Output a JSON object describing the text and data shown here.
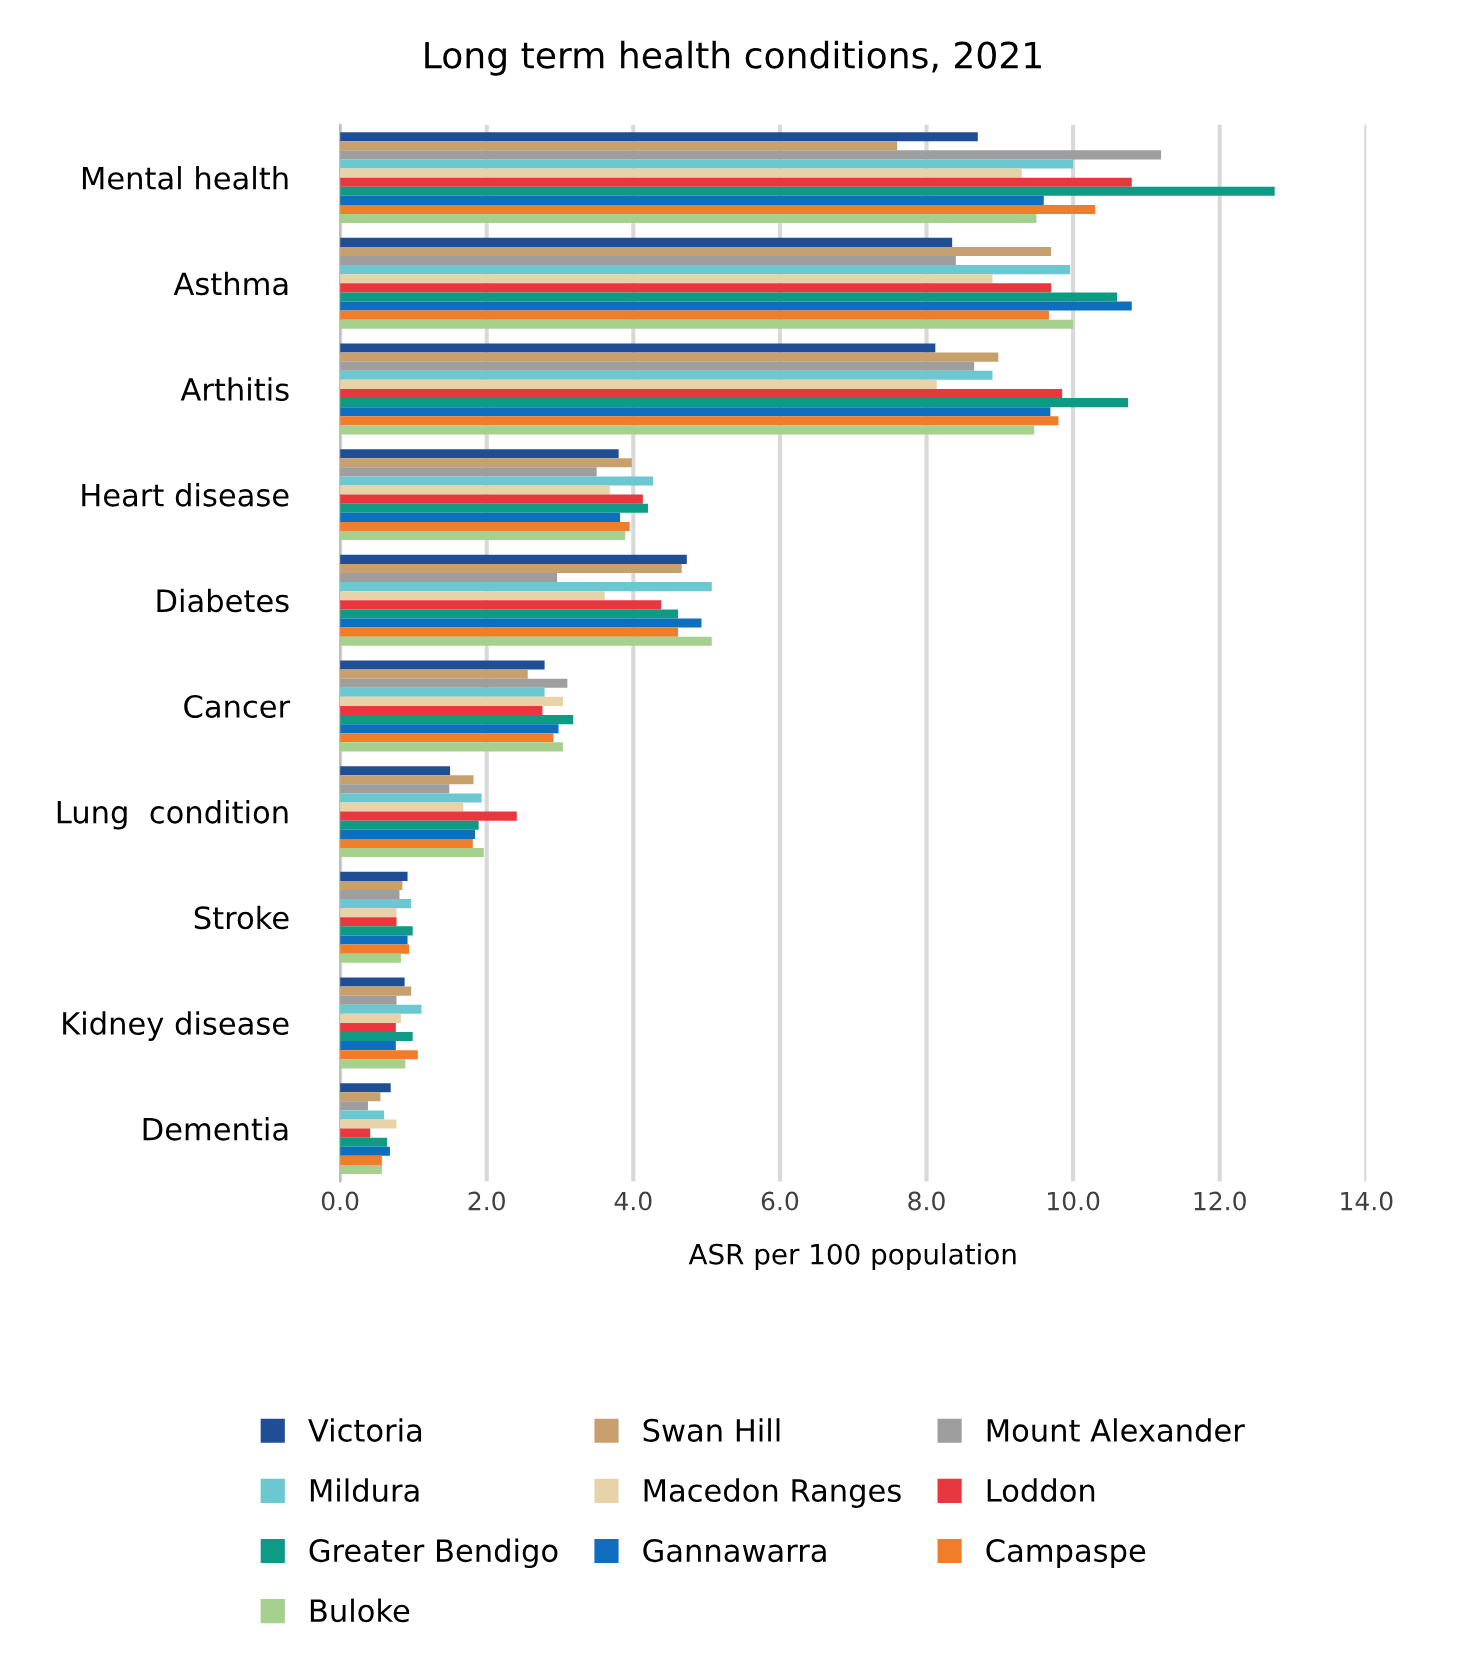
{
  "chart_data": {
    "type": "bar",
    "orientation": "horizontal",
    "title": "Long term health conditions, 2021",
    "xlabel": "ASR per 100 population",
    "categories": [
      "Mental health",
      "Asthma",
      "Arthitis",
      "Heart disease",
      "Diabetes",
      "Cancer",
      "Lung  condition",
      "Stroke",
      "Kidney disease",
      "Dementia"
    ],
    "series": [
      {
        "name": "Victoria",
        "color": "#1f4e96",
        "values": [
          8.7,
          8.35,
          8.12,
          3.8,
          4.73,
          2.79,
          1.5,
          0.92,
          0.88,
          0.69
        ]
      },
      {
        "name": "Swan Hill",
        "color": "#c8a06e",
        "values": [
          7.6,
          9.7,
          8.98,
          3.98,
          4.66,
          2.56,
          1.82,
          0.85,
          0.97,
          0.55
        ]
      },
      {
        "name": "Mount Alexander",
        "color": "#9e9e9e",
        "values": [
          11.2,
          8.4,
          8.65,
          3.5,
          2.96,
          3.1,
          1.49,
          0.81,
          0.77,
          0.38
        ]
      },
      {
        "name": "Mildura",
        "color": "#6cc8d0",
        "values": [
          10.0,
          9.96,
          8.9,
          4.27,
          5.07,
          2.79,
          1.93,
          0.97,
          1.11,
          0.6
        ]
      },
      {
        "name": "Macedon Ranges",
        "color": "#e8d3a8",
        "values": [
          9.3,
          8.9,
          8.14,
          3.68,
          3.61,
          3.04,
          1.68,
          0.77,
          0.83,
          0.77
        ]
      },
      {
        "name": "Loddon",
        "color": "#e8373f",
        "values": [
          10.8,
          9.7,
          9.85,
          4.13,
          4.38,
          2.76,
          2.41,
          0.77,
          0.76,
          0.41
        ]
      },
      {
        "name": "Greater Bendigo",
        "color": "#0e9b86",
        "values": [
          12.75,
          10.6,
          10.75,
          4.2,
          4.61,
          3.18,
          1.89,
          0.99,
          0.99,
          0.64
        ]
      },
      {
        "name": "Gannawarra",
        "color": "#0f6fbf",
        "values": [
          9.6,
          10.8,
          9.69,
          3.82,
          4.93,
          2.98,
          1.84,
          0.92,
          0.76,
          0.68
        ]
      },
      {
        "name": "Campaspe",
        "color": "#ef7d2a",
        "values": [
          10.3,
          9.67,
          9.8,
          3.95,
          4.61,
          2.91,
          1.81,
          0.94,
          1.06,
          0.57
        ]
      },
      {
        "name": "Buloke",
        "color": "#a6d08e",
        "values": [
          9.5,
          10.0,
          9.47,
          3.89,
          5.07,
          3.04,
          1.96,
          0.83,
          0.89,
          0.57
        ]
      }
    ],
    "xlim": [
      0,
      14
    ],
    "xticks": [
      {
        "value": 0,
        "label": "0.0"
      },
      {
        "value": 2,
        "label": "2.0"
      },
      {
        "value": 4,
        "label": "4.0"
      },
      {
        "value": 6,
        "label": "6.0"
      },
      {
        "value": 8,
        "label": "8.0"
      },
      {
        "value": 10,
        "label": "10.0"
      },
      {
        "value": 12,
        "label": "12.0"
      },
      {
        "value": 14,
        "label": "14.0"
      }
    ],
    "grid": "x",
    "legend": "bottom"
  }
}
